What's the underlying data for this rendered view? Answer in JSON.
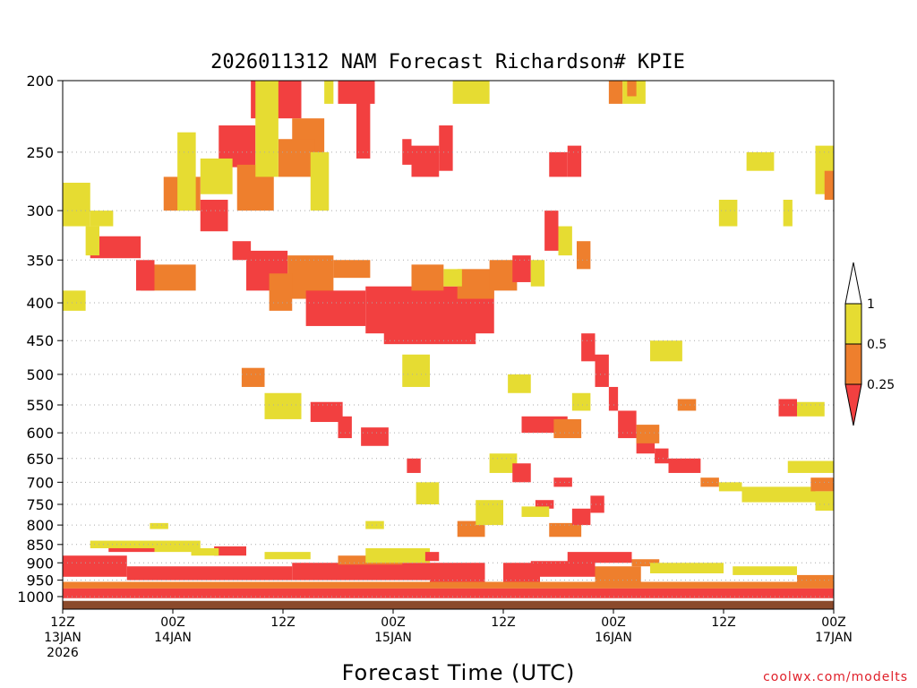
{
  "chart_data": {
    "type": "heatmap",
    "title": "2026011312 NAM Forecast Richardson# KPIE",
    "xlabel": "Forecast Time (UTC)",
    "ylabel": "",
    "y_axis": "pressure (hPa), inverted",
    "ylim": [
      1040,
      200
    ],
    "xlim_hours": [
      0,
      84
    ],
    "y_ticks": [
      200,
      250,
      300,
      350,
      400,
      450,
      500,
      550,
      600,
      650,
      700,
      750,
      800,
      850,
      900,
      950,
      1000
    ],
    "x_ticks": [
      {
        "hour": 0,
        "line1": "12Z",
        "line2": "13JAN",
        "line3": "2026"
      },
      {
        "hour": 12,
        "line1": "00Z",
        "line2": "14JAN",
        "line3": ""
      },
      {
        "hour": 24,
        "line1": "12Z",
        "line2": "",
        "line3": ""
      },
      {
        "hour": 36,
        "line1": "00Z",
        "line2": "15JAN",
        "line3": ""
      },
      {
        "hour": 48,
        "line1": "12Z",
        "line2": "",
        "line3": ""
      },
      {
        "hour": 60,
        "line1": "00Z",
        "line2": "16JAN",
        "line3": ""
      },
      {
        "hour": 72,
        "line1": "12Z",
        "line2": "",
        "line3": ""
      },
      {
        "hour": 84,
        "line1": "00Z",
        "line2": "17JAN",
        "line3": ""
      }
    ],
    "legend": {
      "placement": "right",
      "levels": [
        {
          "label": "1",
          "color": "#ffffff",
          "range": "> 1"
        },
        {
          "label": "0.5",
          "color": "#e6dc32",
          "range": "0.5 - 1"
        },
        {
          "label": "0.25",
          "color": "#ee7f2d",
          "range": "0.25 - 0.5"
        },
        {
          "label": "",
          "color": "#f24040",
          "range": "< 0.25"
        }
      ]
    },
    "colors": {
      "red": "#f24040",
      "orange": "#ee7f2d",
      "yellow": "#e6dc32",
      "ground": "#8b4a2b",
      "grid": "#aaaaaa"
    },
    "patches": [
      {
        "t": [
          20.5,
          26.0
        ],
        "p": [
          200,
          225
        ],
        "v": "red"
      },
      {
        "t": [
          25.0,
          28.5
        ],
        "p": [
          225,
          260
        ],
        "v": "orange"
      },
      {
        "t": [
          17.0,
          21.0
        ],
        "p": [
          230,
          262
        ],
        "v": "red"
      },
      {
        "t": [
          19.0,
          23.0
        ],
        "p": [
          260,
          300
        ],
        "v": "orange"
      },
      {
        "t": [
          15.0,
          18.5
        ],
        "p": [
          255,
          285
        ],
        "v": "yellow"
      },
      {
        "t": [
          11.0,
          15.0
        ],
        "p": [
          270,
          300
        ],
        "v": "orange"
      },
      {
        "t": [
          15.0,
          18.0
        ],
        "p": [
          290,
          320
        ],
        "v": "red"
      },
      {
        "t": [
          23.5,
          27.5
        ],
        "p": [
          240,
          270
        ],
        "v": "orange"
      },
      {
        "t": [
          27.0,
          29.0
        ],
        "p": [
          250,
          300
        ],
        "v": "yellow"
      },
      {
        "t": [
          12.5,
          14.5
        ],
        "p": [
          235,
          300
        ],
        "v": "yellow"
      },
      {
        "t": [
          21.0,
          23.5
        ],
        "p": [
          200,
          270
        ],
        "v": "yellow"
      },
      {
        "t": [
          28.5,
          29.5
        ],
        "p": [
          200,
          215
        ],
        "v": "yellow"
      },
      {
        "t": [
          30.0,
          34.0
        ],
        "p": [
          200,
          215
        ],
        "v": "red"
      },
      {
        "t": [
          32.0,
          33.5
        ],
        "p": [
          210,
          255
        ],
        "v": "red"
      },
      {
        "t": [
          37.0,
          38.0
        ],
        "p": [
          240,
          260
        ],
        "v": "red"
      },
      {
        "t": [
          38.0,
          41.0
        ],
        "p": [
          245,
          270
        ],
        "v": "red"
      },
      {
        "t": [
          41.0,
          42.5
        ],
        "p": [
          230,
          265
        ],
        "v": "red"
      },
      {
        "t": [
          42.5,
          46.5
        ],
        "p": [
          200,
          215
        ],
        "v": "yellow"
      },
      {
        "t": [
          53.0,
          55.0
        ],
        "p": [
          250,
          270
        ],
        "v": "red"
      },
      {
        "t": [
          55.0,
          56.5
        ],
        "p": [
          245,
          270
        ],
        "v": "red"
      },
      {
        "t": [
          59.5,
          61.0
        ],
        "p": [
          200,
          215
        ],
        "v": "orange"
      },
      {
        "t": [
          61.0,
          63.5
        ],
        "p": [
          200,
          215
        ],
        "v": "yellow"
      },
      {
        "t": [
          61.5,
          62.5
        ],
        "p": [
          200,
          210
        ],
        "v": "orange"
      },
      {
        "t": [
          74.5,
          77.5
        ],
        "p": [
          250,
          265
        ],
        "v": "yellow"
      },
      {
        "t": [
          82.0,
          84.0
        ],
        "p": [
          245,
          285
        ],
        "v": "yellow"
      },
      {
        "t": [
          83.0,
          84.0
        ],
        "p": [
          265,
          290
        ],
        "v": "orange"
      },
      {
        "t": [
          0.0,
          3.0
        ],
        "p": [
          275,
          315
        ],
        "v": "yellow"
      },
      {
        "t": [
          3.0,
          5.5
        ],
        "p": [
          300,
          315
        ],
        "v": "yellow"
      },
      {
        "t": [
          71.5,
          73.5
        ],
        "p": [
          290,
          315
        ],
        "v": "yellow"
      },
      {
        "t": [
          78.5,
          79.5
        ],
        "p": [
          290,
          315
        ],
        "v": "yellow"
      },
      {
        "t": [
          3.0,
          8.5
        ],
        "p": [
          325,
          348
        ],
        "v": "red"
      },
      {
        "t": [
          8.5,
          14.5
        ],
        "p": [
          355,
          385
        ],
        "v": "orange"
      },
      {
        "t": [
          8.0,
          10.0
        ],
        "p": [
          350,
          385
        ],
        "v": "red"
      },
      {
        "t": [
          2.5,
          4.0
        ],
        "p": [
          315,
          345
        ],
        "v": "yellow"
      },
      {
        "t": [
          0.0,
          2.5
        ],
        "p": [
          385,
          410
        ],
        "v": "yellow"
      },
      {
        "t": [
          18.5,
          20.5
        ],
        "p": [
          330,
          350
        ],
        "v": "red"
      },
      {
        "t": [
          20.0,
          24.5
        ],
        "p": [
          340,
          385
        ],
        "v": "red"
      },
      {
        "t": [
          24.5,
          29.5
        ],
        "p": [
          345,
          395
        ],
        "v": "orange"
      },
      {
        "t": [
          22.5,
          25.0
        ],
        "p": [
          365,
          410
        ],
        "v": "orange"
      },
      {
        "t": [
          26.5,
          33.0
        ],
        "p": [
          385,
          430
        ],
        "v": "red"
      },
      {
        "t": [
          33.0,
          47.0
        ],
        "p": [
          380,
          440
        ],
        "v": "red"
      },
      {
        "t": [
          35.0,
          45.0
        ],
        "p": [
          420,
          455
        ],
        "v": "red"
      },
      {
        "t": [
          43.0,
          47.0
        ],
        "p": [
          360,
          395
        ],
        "v": "orange"
      },
      {
        "t": [
          46.5,
          49.5
        ],
        "p": [
          350,
          385
        ],
        "v": "orange"
      },
      {
        "t": [
          38.0,
          41.5
        ],
        "p": [
          355,
          385
        ],
        "v": "orange"
      },
      {
        "t": [
          41.5,
          43.5
        ],
        "p": [
          360,
          380
        ],
        "v": "yellow"
      },
      {
        "t": [
          49.0,
          51.0
        ],
        "p": [
          345,
          375
        ],
        "v": "red"
      },
      {
        "t": [
          51.0,
          52.5
        ],
        "p": [
          350,
          380
        ],
        "v": "yellow"
      },
      {
        "t": [
          29.5,
          33.5
        ],
        "p": [
          350,
          370
        ],
        "v": "orange"
      },
      {
        "t": [
          52.5,
          54.0
        ],
        "p": [
          300,
          340
        ],
        "v": "red"
      },
      {
        "t": [
          54.0,
          55.5
        ],
        "p": [
          315,
          345
        ],
        "v": "yellow"
      },
      {
        "t": [
          56.0,
          57.5
        ],
        "p": [
          330,
          360
        ],
        "v": "orange"
      },
      {
        "t": [
          56.5,
          58.0
        ],
        "p": [
          440,
          480
        ],
        "v": "red"
      },
      {
        "t": [
          58.0,
          59.5
        ],
        "p": [
          470,
          520
        ],
        "v": "red"
      },
      {
        "t": [
          59.5,
          60.5
        ],
        "p": [
          520,
          560
        ],
        "v": "red"
      },
      {
        "t": [
          60.5,
          62.5
        ],
        "p": [
          560,
          610
        ],
        "v": "red"
      },
      {
        "t": [
          62.5,
          64.5
        ],
        "p": [
          600,
          640
        ],
        "v": "red"
      },
      {
        "t": [
          64.5,
          66.0
        ],
        "p": [
          630,
          660
        ],
        "v": "red"
      },
      {
        "t": [
          66.0,
          69.5
        ],
        "p": [
          650,
          680
        ],
        "v": "red"
      },
      {
        "t": [
          69.5,
          71.5
        ],
        "p": [
          690,
          710
        ],
        "v": "orange"
      },
      {
        "t": [
          71.5,
          74.0
        ],
        "p": [
          700,
          720
        ],
        "v": "yellow"
      },
      {
        "t": [
          74.0,
          82.0
        ],
        "p": [
          710,
          745
        ],
        "v": "yellow"
      },
      {
        "t": [
          81.5,
          84.0
        ],
        "p": [
          690,
          720
        ],
        "v": "orange"
      },
      {
        "t": [
          79.0,
          84.0
        ],
        "p": [
          655,
          680
        ],
        "v": "yellow"
      },
      {
        "t": [
          82.0,
          84.0
        ],
        "p": [
          720,
          765
        ],
        "v": "yellow"
      },
      {
        "t": [
          64.0,
          67.5
        ],
        "p": [
          450,
          480
        ],
        "v": "yellow"
      },
      {
        "t": [
          62.5,
          65.0
        ],
        "p": [
          585,
          620
        ],
        "v": "orange"
      },
      {
        "t": [
          67.0,
          69.0
        ],
        "p": [
          540,
          560
        ],
        "v": "orange"
      },
      {
        "t": [
          78.0,
          80.0
        ],
        "p": [
          540,
          570
        ],
        "v": "red"
      },
      {
        "t": [
          80.0,
          83.0
        ],
        "p": [
          545,
          570
        ],
        "v": "yellow"
      },
      {
        "t": [
          19.5,
          22.0
        ],
        "p": [
          490,
          520
        ],
        "v": "orange"
      },
      {
        "t": [
          22.0,
          26.0
        ],
        "p": [
          530,
          575
        ],
        "v": "yellow"
      },
      {
        "t": [
          27.0,
          30.5
        ],
        "p": [
          545,
          580
        ],
        "v": "red"
      },
      {
        "t": [
          30.0,
          31.5
        ],
        "p": [
          570,
          610
        ],
        "v": "red"
      },
      {
        "t": [
          32.5,
          35.5
        ],
        "p": [
          590,
          625
        ],
        "v": "red"
      },
      {
        "t": [
          37.0,
          40.0
        ],
        "p": [
          470,
          520
        ],
        "v": "yellow"
      },
      {
        "t": [
          50.0,
          55.0
        ],
        "p": [
          570,
          600
        ],
        "v": "red"
      },
      {
        "t": [
          53.5,
          56.5
        ],
        "p": [
          575,
          610
        ],
        "v": "orange"
      },
      {
        "t": [
          55.5,
          57.5
        ],
        "p": [
          530,
          560
        ],
        "v": "yellow"
      },
      {
        "t": [
          48.5,
          51.0
        ],
        "p": [
          500,
          530
        ],
        "v": "yellow"
      },
      {
        "t": [
          46.5,
          49.5
        ],
        "p": [
          640,
          680
        ],
        "v": "yellow"
      },
      {
        "t": [
          49.0,
          51.0
        ],
        "p": [
          660,
          700
        ],
        "v": "red"
      },
      {
        "t": [
          51.5,
          53.5
        ],
        "p": [
          740,
          760
        ],
        "v": "red"
      },
      {
        "t": [
          50.0,
          53.0
        ],
        "p": [
          755,
          780
        ],
        "v": "yellow"
      },
      {
        "t": [
          53.5,
          55.5
        ],
        "p": [
          690,
          710
        ],
        "v": "red"
      },
      {
        "t": [
          43.0,
          46.0
        ],
        "p": [
          790,
          830
        ],
        "v": "orange"
      },
      {
        "t": [
          45.0,
          48.0
        ],
        "p": [
          740,
          800
        ],
        "v": "yellow"
      },
      {
        "t": [
          38.5,
          41.0
        ],
        "p": [
          700,
          750
        ],
        "v": "yellow"
      },
      {
        "t": [
          37.5,
          39.0
        ],
        "p": [
          650,
          680
        ],
        "v": "red"
      },
      {
        "t": [
          53.0,
          56.5
        ],
        "p": [
          795,
          830
        ],
        "v": "orange"
      },
      {
        "t": [
          55.5,
          57.5
        ],
        "p": [
          760,
          800
        ],
        "v": "red"
      },
      {
        "t": [
          57.5,
          59.0
        ],
        "p": [
          730,
          770
        ],
        "v": "red"
      },
      {
        "t": [
          9.5,
          11.5
        ],
        "p": [
          795,
          810
        ],
        "v": "yellow"
      },
      {
        "t": [
          33.0,
          35.0
        ],
        "p": [
          790,
          810
        ],
        "v": "yellow"
      },
      {
        "t": [
          0.0,
          84.0
        ],
        "p": [
          955,
          975
        ],
        "v": "orange"
      },
      {
        "t": [
          0.0,
          84.0
        ],
        "p": [
          975,
          1005
        ],
        "v": "red"
      },
      {
        "t": [
          0.0,
          7.0
        ],
        "p": [
          880,
          940
        ],
        "v": "red"
      },
      {
        "t": [
          5.0,
          10.0
        ],
        "p": [
          845,
          870
        ],
        "v": "red"
      },
      {
        "t": [
          3.0,
          10.0
        ],
        "p": [
          840,
          860
        ],
        "v": "yellow"
      },
      {
        "t": [
          10.0,
          15.0
        ],
        "p": [
          840,
          870
        ],
        "v": "yellow"
      },
      {
        "t": [
          16.5,
          20.0
        ],
        "p": [
          855,
          880
        ],
        "v": "red"
      },
      {
        "t": [
          14.0,
          17.0
        ],
        "p": [
          860,
          880
        ],
        "v": "yellow"
      },
      {
        "t": [
          22.0,
          27.0
        ],
        "p": [
          870,
          890
        ],
        "v": "yellow"
      },
      {
        "t": [
          7.0,
          25.0
        ],
        "p": [
          910,
          950
        ],
        "v": "red"
      },
      {
        "t": [
          25.0,
          40.0
        ],
        "p": [
          900,
          950
        ],
        "v": "red"
      },
      {
        "t": [
          30.0,
          37.0
        ],
        "p": [
          880,
          905
        ],
        "v": "orange"
      },
      {
        "t": [
          33.0,
          40.0
        ],
        "p": [
          860,
          900
        ],
        "v": "yellow"
      },
      {
        "t": [
          39.5,
          41.0
        ],
        "p": [
          870,
          895
        ],
        "v": "red"
      },
      {
        "t": [
          40.0,
          46.0
        ],
        "p": [
          900,
          955
        ],
        "v": "red"
      },
      {
        "t": [
          48.0,
          52.0
        ],
        "p": [
          900,
          955
        ],
        "v": "red"
      },
      {
        "t": [
          51.0,
          58.0
        ],
        "p": [
          895,
          940
        ],
        "v": "red"
      },
      {
        "t": [
          58.0,
          63.0
        ],
        "p": [
          910,
          960
        ],
        "v": "orange"
      },
      {
        "t": [
          55.0,
          62.0
        ],
        "p": [
          870,
          900
        ],
        "v": "red"
      },
      {
        "t": [
          62.0,
          65.0
        ],
        "p": [
          890,
          910
        ],
        "v": "orange"
      },
      {
        "t": [
          64.0,
          72.0
        ],
        "p": [
          900,
          930
        ],
        "v": "yellow"
      },
      {
        "t": [
          73.0,
          80.0
        ],
        "p": [
          910,
          935
        ],
        "v": "yellow"
      },
      {
        "t": [
          80.0,
          84.0
        ],
        "p": [
          935,
          955
        ],
        "v": "orange"
      }
    ]
  },
  "credit": "coolwx.com/modelts"
}
